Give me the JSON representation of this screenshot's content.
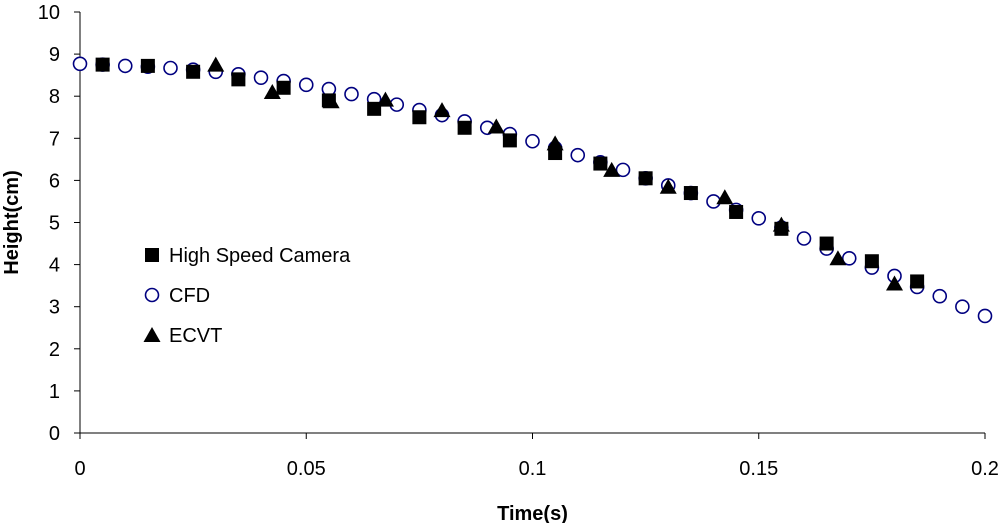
{
  "chart_data": {
    "type": "scatter",
    "title": "",
    "xlabel": "Time(s)",
    "ylabel": "Height(cm)",
    "xlim": [
      0,
      0.2
    ],
    "ylim": [
      0,
      10
    ],
    "xticks": [
      "0",
      "0.05",
      "0.1",
      "0.15",
      "0.2"
    ],
    "yticks": [
      "0",
      "1",
      "2",
      "3",
      "4",
      "5",
      "6",
      "7",
      "8",
      "9",
      "10"
    ],
    "grid": false,
    "legend_position": "left",
    "series": [
      {
        "name": "High Speed Camera",
        "marker": "square",
        "color": "#000000",
        "x": [
          0.005,
          0.015,
          0.025,
          0.035,
          0.045,
          0.055,
          0.065,
          0.075,
          0.085,
          0.095,
          0.105,
          0.115,
          0.125,
          0.135,
          0.145,
          0.155,
          0.165,
          0.175,
          0.185
        ],
        "y": [
          8.75,
          8.72,
          8.58,
          8.4,
          8.2,
          7.9,
          7.7,
          7.5,
          7.25,
          6.95,
          6.65,
          6.4,
          6.05,
          5.7,
          5.25,
          4.85,
          4.5,
          4.08,
          3.6
        ]
      },
      {
        "name": "CFD",
        "marker": "circle-open",
        "color": "#000080",
        "x": [
          0.0,
          0.005,
          0.01,
          0.015,
          0.02,
          0.025,
          0.03,
          0.035,
          0.04,
          0.045,
          0.05,
          0.055,
          0.06,
          0.065,
          0.07,
          0.075,
          0.08,
          0.085,
          0.09,
          0.095,
          0.1,
          0.105,
          0.11,
          0.115,
          0.12,
          0.125,
          0.13,
          0.135,
          0.14,
          0.145,
          0.15,
          0.155,
          0.16,
          0.165,
          0.17,
          0.175,
          0.18,
          0.185,
          0.19,
          0.195,
          0.2
        ],
        "y": [
          8.77,
          8.75,
          8.72,
          8.7,
          8.67,
          8.63,
          8.58,
          8.52,
          8.44,
          8.36,
          8.27,
          8.17,
          8.05,
          7.93,
          7.8,
          7.67,
          7.55,
          7.4,
          7.25,
          7.1,
          6.93,
          6.77,
          6.6,
          6.43,
          6.25,
          6.05,
          5.88,
          5.7,
          5.5,
          5.3,
          5.1,
          4.88,
          4.62,
          4.38,
          4.15,
          3.93,
          3.73,
          3.47,
          3.25,
          3.0,
          2.78
        ]
      },
      {
        "name": "ECVT",
        "marker": "triangle",
        "color": "#000000",
        "x": [
          0.03,
          0.0425,
          0.0555,
          0.0675,
          0.08,
          0.092,
          0.105,
          0.1175,
          0.13,
          0.1425,
          0.155,
          0.1675,
          0.18
        ],
        "y": [
          8.75,
          8.1,
          7.88,
          7.92,
          7.67,
          7.28,
          6.88,
          6.25,
          5.85,
          5.6,
          4.95,
          4.15,
          3.55
        ]
      }
    ]
  }
}
